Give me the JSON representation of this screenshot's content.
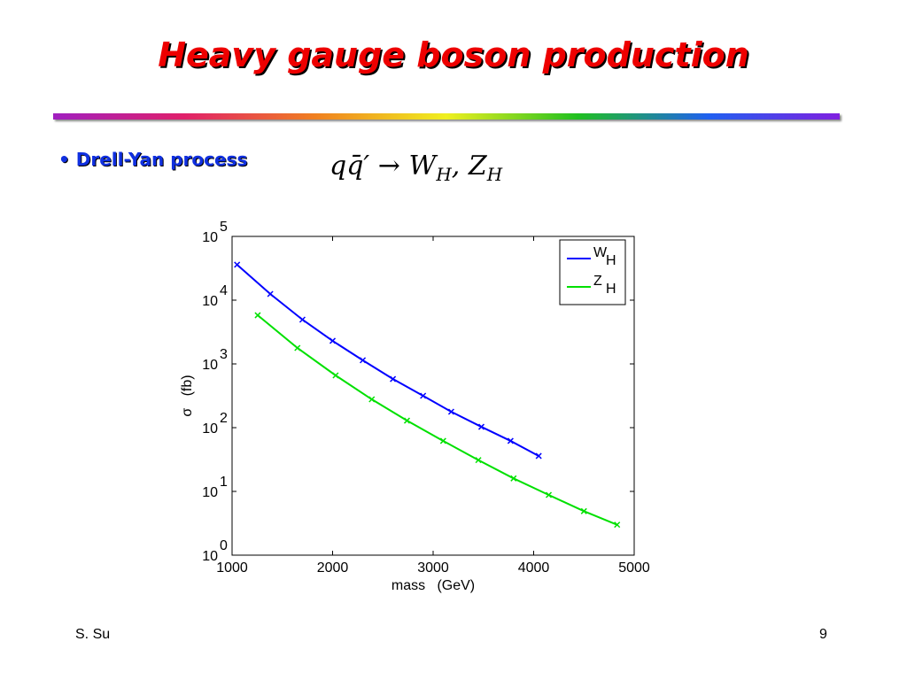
{
  "title": "Heavy gauge boson production",
  "bullet": "Drell-Yan process",
  "formula": {
    "lhs": "qq̄′",
    "arrow": "→",
    "w": "W",
    "w_sub": "H",
    "sep": ",",
    "z": "Z",
    "z_sub": "H"
  },
  "footer": {
    "author": "S. Su",
    "page": 9
  },
  "chart_data": {
    "type": "line",
    "xlabel": "mass   (GeV)",
    "ylabel": "σ   (fb)",
    "xlim": [
      1000,
      5000
    ],
    "xticks": [
      1000,
      2000,
      3000,
      4000,
      5000
    ],
    "ylim": [
      1,
      100000
    ],
    "ylog": true,
    "yticks": [
      {
        "value": 1,
        "label": "10",
        "exponent": "0"
      },
      {
        "value": 10,
        "label": "10",
        "exponent": "1"
      },
      {
        "value": 100,
        "label": "10",
        "exponent": "2"
      },
      {
        "value": 1000,
        "label": "10",
        "exponent": "3"
      },
      {
        "value": 10000,
        "label": "10",
        "exponent": "4"
      },
      {
        "value": 100000,
        "label": "10",
        "exponent": "5"
      }
    ],
    "legend": "top-right",
    "series": [
      {
        "name": "W",
        "subscript": "H",
        "color": "#0000ff",
        "x": [
          1050,
          1380,
          1700,
          2000,
          2300,
          2600,
          2900,
          3180,
          3480,
          3770,
          4050
        ],
        "values": [
          36000,
          12500,
          4950,
          2300,
          1140,
          580,
          316,
          178,
          103,
          62,
          36
        ]
      },
      {
        "name": "Z",
        "subscript": "H",
        "color": "#00e000",
        "x": [
          1255,
          1650,
          2030,
          2390,
          2740,
          3100,
          3450,
          3800,
          4150,
          4500,
          4830
        ],
        "values": [
          5800,
          1780,
          660,
          278,
          129,
          62,
          31,
          16,
          8.8,
          4.9,
          3.0
        ]
      }
    ]
  }
}
